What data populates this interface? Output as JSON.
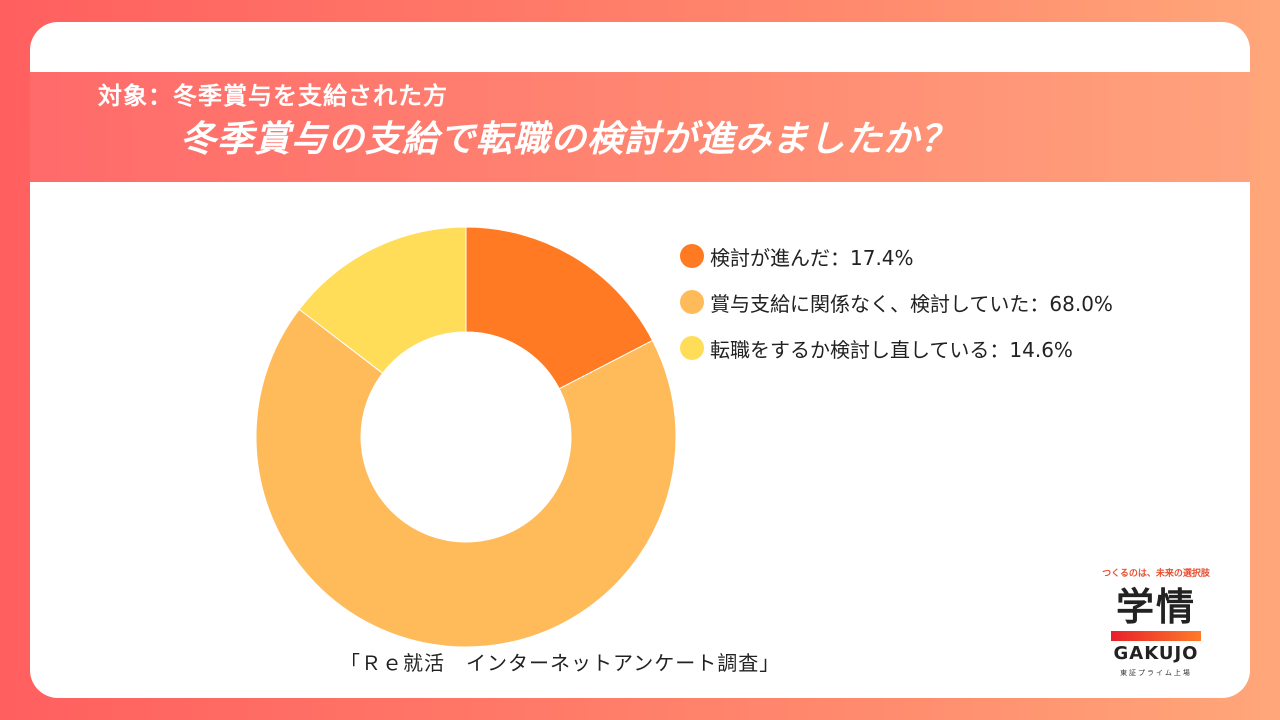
{
  "header": {
    "subtitle": "対象：冬季賞与を支給された方",
    "title": "冬季賞与の支給で転職の検討が進みましたか？"
  },
  "chart_data": {
    "type": "pie",
    "donut": true,
    "categories": [
      "検討が進んだ",
      "賞与支給に関係なく、検討していた",
      "転職をするか検討し直している"
    ],
    "values": [
      17.4,
      68.0,
      14.6
    ],
    "colors": [
      "#ff7a22",
      "#ffba5a",
      "#ffdd58"
    ],
    "legend_labels": [
      "検討が進んだ：17.4%",
      "賞与支給に関係なく、検討していた：68.0%",
      "転職をするか検討し直している：14.6%"
    ],
    "legend_position": "right"
  },
  "source": "「Ｒｅ就活　インターネットアンケート調査」",
  "logo": {
    "tagline": "つくるのは、未来の選択肢",
    "brand": "学情",
    "brand_en": "GAKUJO",
    "listing": "東証プライム上場",
    "bar_colors": [
      "#e8202a",
      "#ff7a2a"
    ]
  }
}
